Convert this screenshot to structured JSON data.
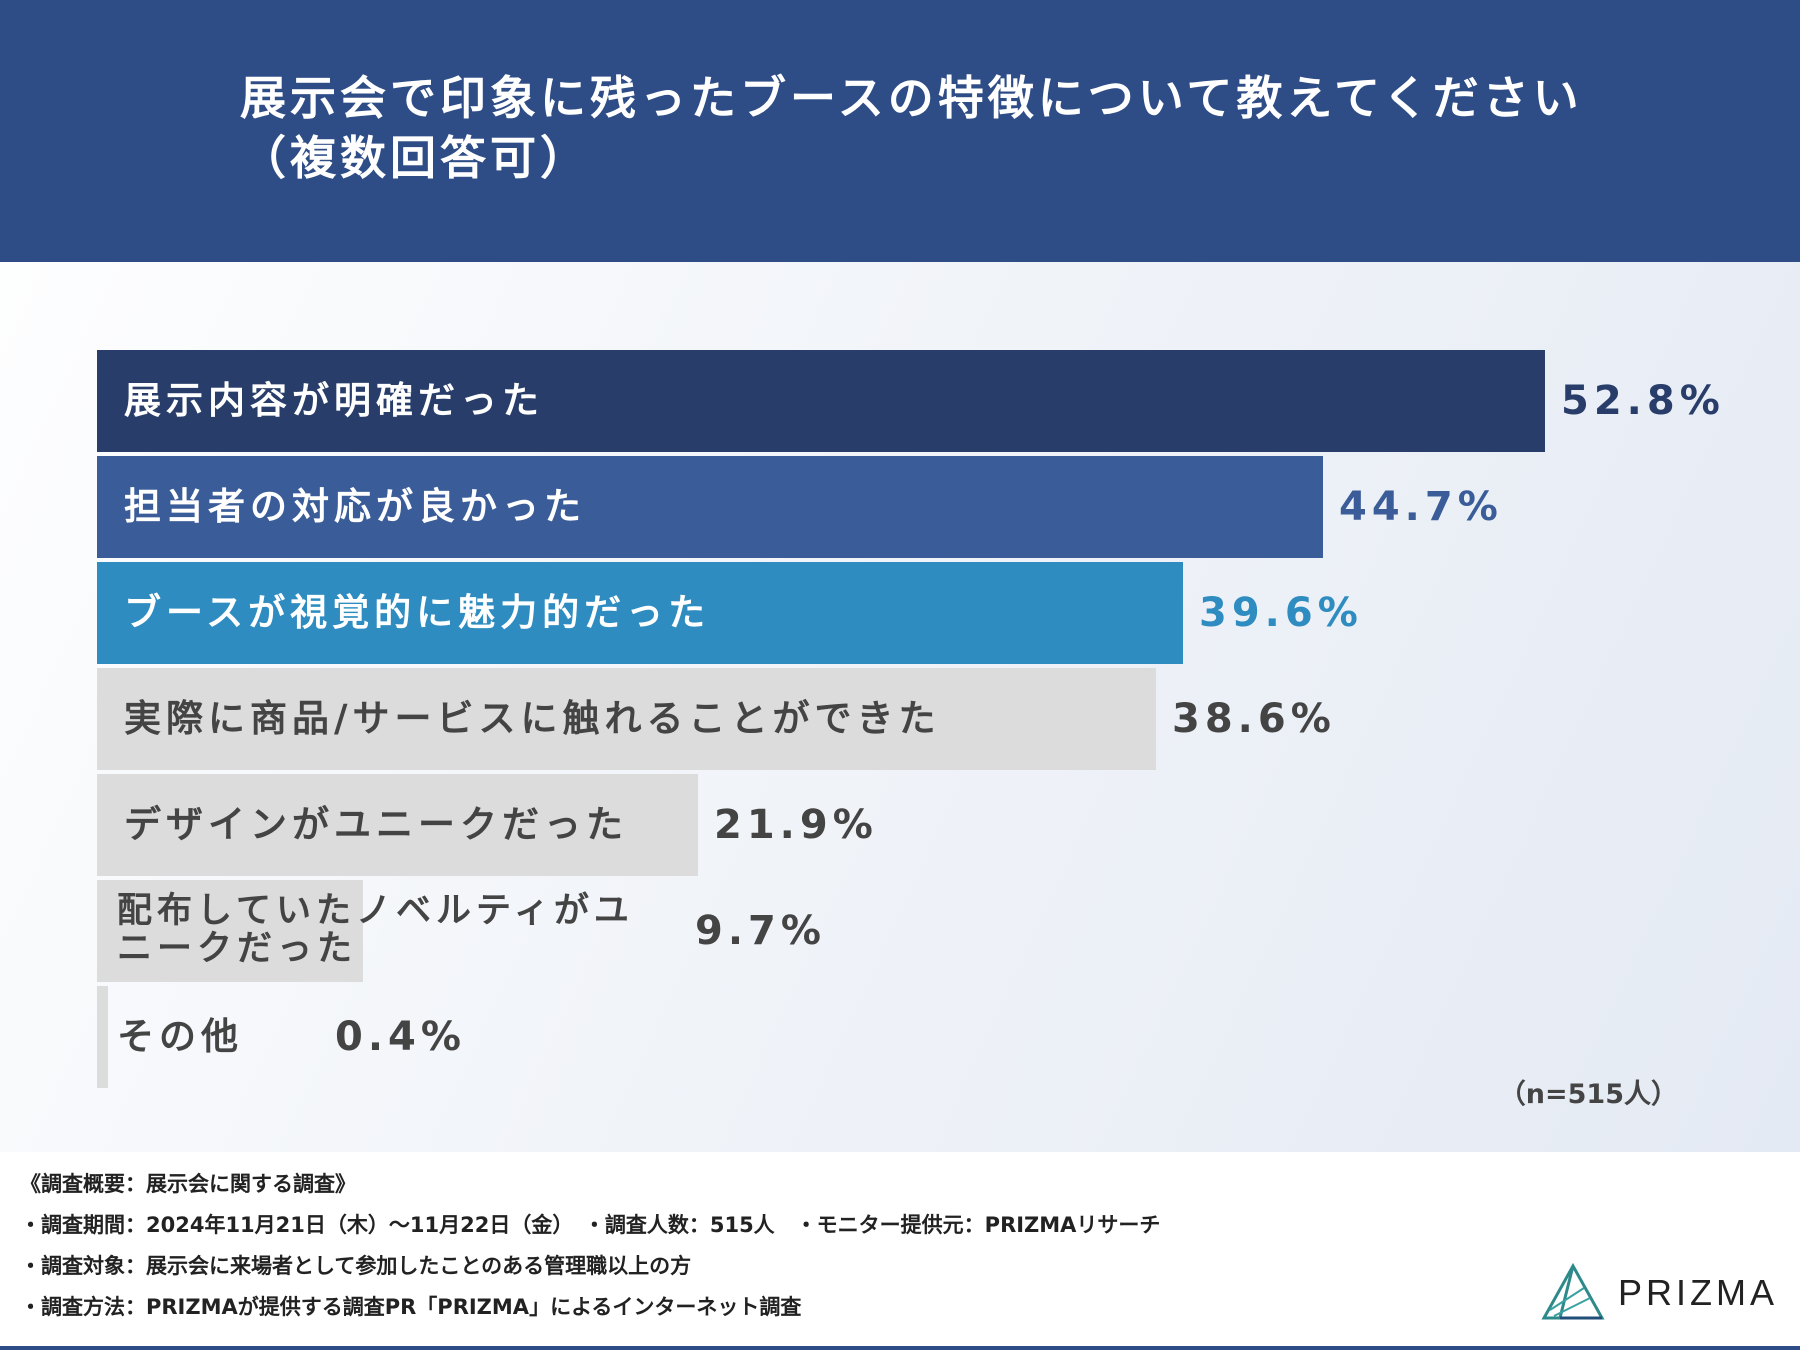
{
  "header": {
    "title_line1": "展示会で印象に残ったブースの特徴について教えてください",
    "title_line2": "（複数回答可）"
  },
  "chart_data": {
    "type": "bar",
    "orientation": "horizontal",
    "title": "展示会で印象に残ったブースの特徴について教えてください（複数回答可）",
    "categories": [
      "展示内容が明確だった",
      "担当者の対応が良かった",
      "ブースが視覚的に魅力的だった",
      "実際に商品/サービスに触れることができた",
      "デザインがユニークだった",
      "配布していたノベルティがユニークだった",
      "その他"
    ],
    "values": [
      52.8,
      44.7,
      39.6,
      38.6,
      21.9,
      9.7,
      0.4
    ],
    "value_labels": [
      "52.8%",
      "44.7%",
      "39.6%",
      "38.6%",
      "21.9%",
      "9.7%",
      "0.4%"
    ],
    "unit": "%",
    "xlim": [
      0,
      52.8
    ],
    "bar_colors": [
      "#283d69",
      "#3a5c98",
      "#2e8cc0",
      "#dcdcdc",
      "#dcdcdc",
      "#dcdcdc",
      "#dcdcdc"
    ],
    "label_colors": [
      "#ffffff",
      "#ffffff",
      "#ffffff",
      "#444444",
      "#444444",
      "#444444",
      "#444444"
    ],
    "value_colors": [
      "#283d69",
      "#3a5c98",
      "#2e8cc0",
      "#444444",
      "#444444",
      "#444444",
      "#444444"
    ],
    "sample_note": "（n=515人）"
  },
  "footer": {
    "summary": "《調査概要：展示会に関する調査》",
    "period": "・調査期間：2024年11月21日（木）～11月22日（金）　・調査人数：515人　・モニター提供元：PRIZMAリサーチ",
    "target": "・調査対象：展示会に来場者として参加したことのある管理職以上の方",
    "method": "・調査方法：PRIZMAが提供する調査PR「PRIZMA」によるインターネット調査"
  },
  "logo": {
    "text": "PRIZMA"
  }
}
